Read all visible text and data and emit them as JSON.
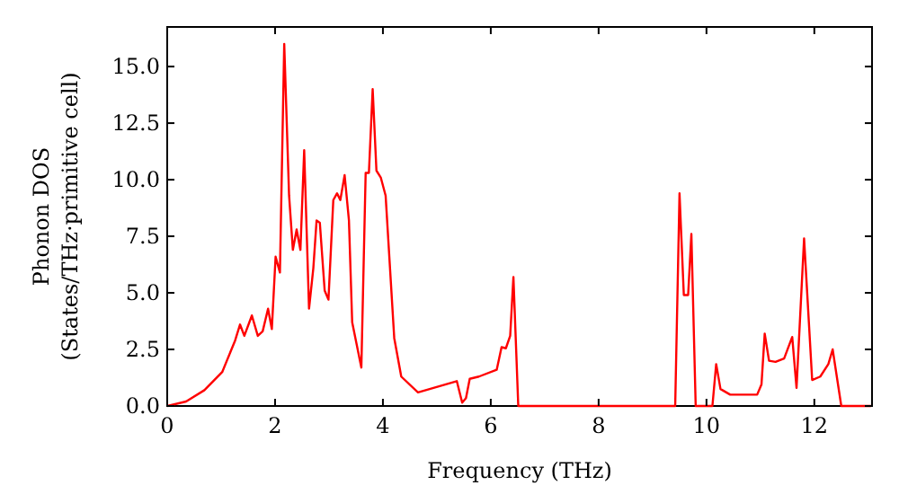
{
  "chart_data": {
    "type": "line",
    "xlabel": "Frequency (THz)",
    "ylabel": "Phonon DOS\n(States/THz·primitive cell)",
    "xlim": [
      0,
      13.07
    ],
    "ylim": [
      0,
      16.75
    ],
    "xticks": [
      0,
      2,
      4,
      6,
      8,
      10,
      12
    ],
    "yticks": [
      {
        "value": 0,
        "label": "0.0"
      },
      {
        "value": 2.5,
        "label": "2.5"
      },
      {
        "value": 5,
        "label": "5.0"
      },
      {
        "value": 7.5,
        "label": "7.5"
      },
      {
        "value": 10,
        "label": "10.0"
      },
      {
        "value": 12.5,
        "label": "12.5"
      },
      {
        "value": 15,
        "label": "15.0"
      }
    ],
    "grid": false,
    "marker": "none",
    "line_style": "solid",
    "series": [
      {
        "color": "#ff0000",
        "x": [
          0,
          0.35,
          0.69,
          1.02,
          1.26,
          1.35,
          1.43,
          1.57,
          1.68,
          1.77,
          1.87,
          1.94,
          2.01,
          2.09,
          2.17,
          2.26,
          2.33,
          2.4,
          2.47,
          2.54,
          2.63,
          2.71,
          2.77,
          2.83,
          2.92,
          2.99,
          3.08,
          3.15,
          3.21,
          3.29,
          3.37,
          3.43,
          3.6,
          3.68,
          3.74,
          3.81,
          3.88,
          3.96,
          4.05,
          4.21,
          4.34,
          4.65,
          5.37,
          5.47,
          5.54,
          5.61,
          5.78,
          6.11,
          6.2,
          6.28,
          6.36,
          6.42,
          6.51,
          9.42,
          9.5,
          9.58,
          9.66,
          9.72,
          9.8,
          10.11,
          10.18,
          10.26,
          10.44,
          10.94,
          11.02,
          11.08,
          11.16,
          11.28,
          11.44,
          11.59,
          11.67,
          11.81,
          11.96,
          12.11,
          12.26,
          12.34,
          12.5,
          13.05
        ],
        "values": [
          0,
          0.2,
          0.7,
          1.5,
          2.9,
          3.6,
          3.1,
          4.0,
          3.1,
          3.3,
          4.3,
          3.4,
          6.6,
          5.9,
          16.0,
          9.3,
          6.9,
          7.8,
          6.9,
          11.3,
          4.3,
          6.1,
          8.2,
          8.1,
          5.1,
          4.7,
          9.1,
          9.4,
          9.1,
          10.2,
          8.2,
          3.7,
          1.7,
          10.3,
          10.3,
          14.0,
          10.4,
          10.1,
          9.3,
          3.0,
          1.3,
          0.6,
          1.1,
          0.15,
          0.35,
          1.2,
          1.3,
          1.6,
          2.6,
          2.55,
          3.1,
          5.7,
          0,
          0,
          9.4,
          4.9,
          4.9,
          7.6,
          0,
          0,
          1.85,
          0.75,
          0.5,
          0.5,
          0.95,
          3.2,
          2.0,
          1.95,
          2.1,
          3.05,
          0.8,
          7.4,
          1.15,
          1.3,
          1.85,
          2.5,
          0,
          0
        ]
      }
    ]
  }
}
